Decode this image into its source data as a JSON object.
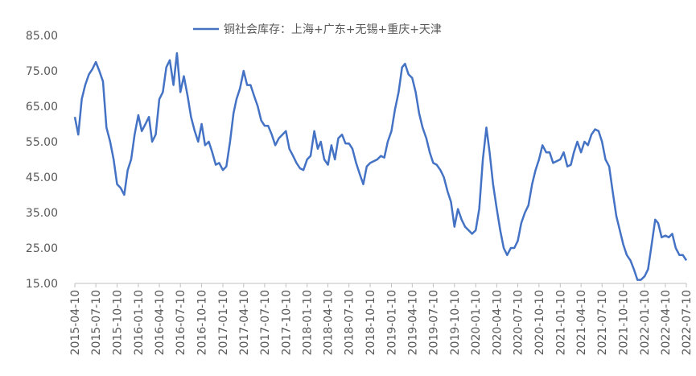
{
  "chart_data": {
    "type": "line",
    "x": [
      "2015-04-10",
      "2015-04-25",
      "2015-05-10",
      "2015-05-25",
      "2015-06-10",
      "2015-06-25",
      "2015-07-10",
      "2015-07-25",
      "2015-08-10",
      "2015-08-25",
      "2015-09-10",
      "2015-09-25",
      "2015-10-10",
      "2015-10-25",
      "2015-11-10",
      "2015-11-25",
      "2015-12-10",
      "2015-12-25",
      "2016-01-10",
      "2016-01-25",
      "2016-02-10",
      "2016-02-25",
      "2016-03-10",
      "2016-03-25",
      "2016-04-10",
      "2016-04-25",
      "2016-05-10",
      "2016-05-25",
      "2016-06-10",
      "2016-06-25",
      "2016-07-10",
      "2016-07-25",
      "2016-08-10",
      "2016-08-25",
      "2016-09-10",
      "2016-09-25",
      "2016-10-10",
      "2016-10-25",
      "2016-11-10",
      "2016-11-25",
      "2016-12-10",
      "2016-12-25",
      "2017-01-10",
      "2017-01-25",
      "2017-02-10",
      "2017-02-25",
      "2017-03-10",
      "2017-03-25",
      "2017-04-10",
      "2017-04-25",
      "2017-05-10",
      "2017-05-25",
      "2017-06-10",
      "2017-06-25",
      "2017-07-10",
      "2017-07-25",
      "2017-08-10",
      "2017-08-25",
      "2017-09-10",
      "2017-09-25",
      "2017-10-10",
      "2017-10-25",
      "2017-11-10",
      "2017-11-25",
      "2017-12-10",
      "2017-12-25",
      "2018-01-10",
      "2018-01-25",
      "2018-02-10",
      "2018-02-25",
      "2018-03-10",
      "2018-03-25",
      "2018-04-10",
      "2018-04-25",
      "2018-05-10",
      "2018-05-25",
      "2018-06-10",
      "2018-06-25",
      "2018-07-10",
      "2018-07-25",
      "2018-08-10",
      "2018-08-25",
      "2018-09-10",
      "2018-09-25",
      "2018-10-10",
      "2018-10-25",
      "2018-11-10",
      "2018-11-25",
      "2018-12-10",
      "2018-12-25",
      "2019-01-10",
      "2019-01-25",
      "2019-02-10",
      "2019-02-25",
      "2019-03-10",
      "2019-03-25",
      "2019-04-10",
      "2019-04-25",
      "2019-05-10",
      "2019-05-25",
      "2019-06-10",
      "2019-06-25",
      "2019-07-10",
      "2019-07-25",
      "2019-08-10",
      "2019-08-25",
      "2019-09-10",
      "2019-09-25",
      "2019-10-10",
      "2019-10-25",
      "2019-11-10",
      "2019-11-25",
      "2019-12-10",
      "2019-12-25",
      "2020-01-10",
      "2020-01-25",
      "2020-02-10",
      "2020-02-25",
      "2020-03-10",
      "2020-03-25",
      "2020-04-10",
      "2020-04-25",
      "2020-05-10",
      "2020-05-25",
      "2020-06-10",
      "2020-06-25",
      "2020-07-10",
      "2020-07-25",
      "2020-08-10",
      "2020-08-25",
      "2020-09-10",
      "2020-09-25",
      "2020-10-10",
      "2020-10-25",
      "2020-11-10",
      "2020-11-25",
      "2020-12-10",
      "2020-12-25",
      "2021-01-10",
      "2021-01-25",
      "2021-02-10",
      "2021-02-25",
      "2021-03-10",
      "2021-03-25",
      "2021-04-10",
      "2021-04-25",
      "2021-05-10",
      "2021-05-25",
      "2021-06-10",
      "2021-06-25",
      "2021-07-10",
      "2021-07-25",
      "2021-08-10",
      "2021-08-25",
      "2021-09-10",
      "2021-09-25",
      "2021-10-10",
      "2021-10-25",
      "2021-11-10",
      "2021-11-25",
      "2021-12-10",
      "2021-12-25",
      "2022-01-10",
      "2022-01-25",
      "2022-02-10",
      "2022-02-25",
      "2022-03-10",
      "2022-03-25",
      "2022-04-10",
      "2022-04-25",
      "2022-05-10",
      "2022-05-25",
      "2022-06-10",
      "2022-06-25",
      "2022-07-10"
    ],
    "series": [
      {
        "name": "铜社会库存：上海+广东+无锡+重庆+天津",
        "color": "#4472c4",
        "values": [
          62,
          57,
          67,
          71,
          74,
          75.5,
          77.5,
          75,
          72,
          59,
          55,
          50,
          43,
          42,
          40,
          47,
          50,
          57,
          62.5,
          58,
          60,
          62,
          55,
          57,
          67,
          69,
          76,
          78,
          71,
          80,
          69,
          73.5,
          68,
          62,
          58,
          55,
          60,
          54,
          55,
          52,
          48.5,
          49,
          47,
          48,
          55,
          63,
          67,
          70,
          75,
          71,
          71,
          68,
          65,
          61,
          59.5,
          59.5,
          57,
          54,
          56,
          57,
          58,
          53,
          51,
          49,
          47.5,
          47,
          50,
          51,
          58,
          53,
          55,
          50,
          48.5,
          54,
          50,
          56,
          57,
          54.5,
          54.5,
          53,
          49,
          46,
          43,
          48,
          49,
          49.5,
          50,
          51,
          50.5,
          55,
          58,
          64,
          69,
          76,
          77,
          74,
          73,
          69,
          63,
          59,
          56,
          52,
          49,
          48.5,
          47,
          45,
          41,
          38,
          31,
          36,
          33,
          31,
          30,
          29,
          30,
          36,
          50,
          59,
          52,
          43,
          36,
          30,
          25,
          23,
          25,
          25,
          27,
          32,
          35,
          37,
          43,
          47,
          50,
          54,
          52,
          52,
          49,
          49.5,
          50,
          52,
          48,
          48.5,
          52,
          55,
          52,
          55,
          54,
          57,
          58.5,
          58,
          55,
          50,
          48,
          41,
          34,
          30,
          26,
          23,
          21.5,
          19,
          16,
          16,
          17,
          19,
          26,
          33,
          32,
          28,
          28.5,
          28,
          29,
          25,
          23,
          23,
          21.5
        ]
      }
    ],
    "xlim": [
      "2015-04-10",
      "2022-07-10"
    ],
    "xticks": [
      "2015-04-10",
      "2015-07-10",
      "2015-10-10",
      "2016-01-10",
      "2016-04-10",
      "2016-07-10",
      "2016-10-10",
      "2017-01-10",
      "2017-04-10",
      "2017-07-10",
      "2017-10-10",
      "2018-01-10",
      "2018-04-10",
      "2018-07-10",
      "2018-10-10",
      "2019-01-10",
      "2019-04-10",
      "2019-07-10",
      "2019-10-10",
      "2020-01-10",
      "2020-04-10",
      "2020-07-10",
      "2020-10-10",
      "2021-01-10",
      "2021-04-10",
      "2021-07-10",
      "2021-10-10",
      "2022-01-10",
      "2022-04-10",
      "2022-07-10"
    ],
    "ylim": [
      15,
      85
    ],
    "yticks": [
      {
        "value": 15,
        "label": "15.00"
      },
      {
        "value": 25,
        "label": "25.00"
      },
      {
        "value": 35,
        "label": "35.00"
      },
      {
        "value": 45,
        "label": "45.00"
      },
      {
        "value": 55,
        "label": "55.00"
      },
      {
        "value": 65,
        "label": "65.00"
      },
      {
        "value": 75,
        "label": "75.00"
      },
      {
        "value": 85,
        "label": "85.00"
      }
    ],
    "grid": false,
    "legend": "top"
  }
}
